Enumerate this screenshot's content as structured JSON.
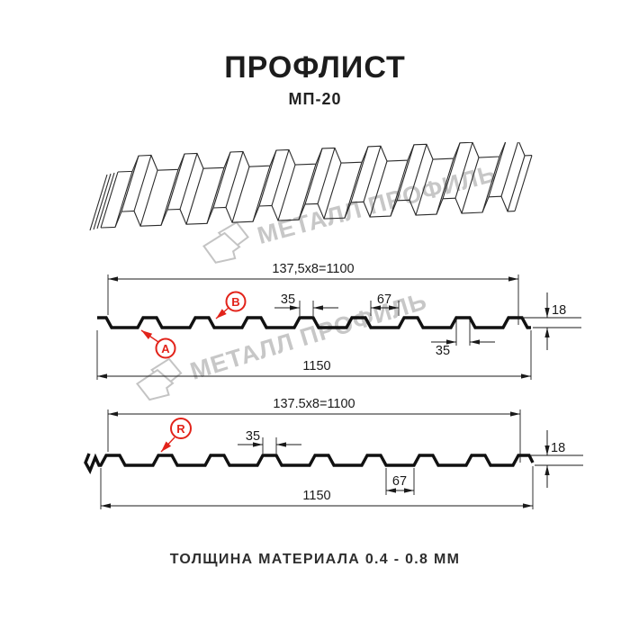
{
  "title": "ПРОФЛИСТ",
  "subtitle": "МП-20",
  "footer": "ТОЛЩИНА МАТЕРИАЛА 0.4 - 0.8 ММ",
  "watermark": {
    "text": "МЕТАЛЛ ПРОФИЛЬ"
  },
  "colors": {
    "accent_red": "#e2231a",
    "line_black": "#1a1a1a",
    "watermark_gray": "#c7c7c7",
    "background": "#ffffff"
  },
  "sections": [
    {
      "top_dim": "137,5x8=1100",
      "dim35_top": "35",
      "dim67": "67",
      "dim18": "18",
      "dim35_bottom": "35",
      "total_width": "1150",
      "labels": [
        "A",
        "B"
      ]
    },
    {
      "top_dim": "137.5x8=1100",
      "dim35": "35",
      "dim67": "67",
      "dim18": "18",
      "total_width": "1150",
      "labels": [
        "R"
      ]
    }
  ]
}
